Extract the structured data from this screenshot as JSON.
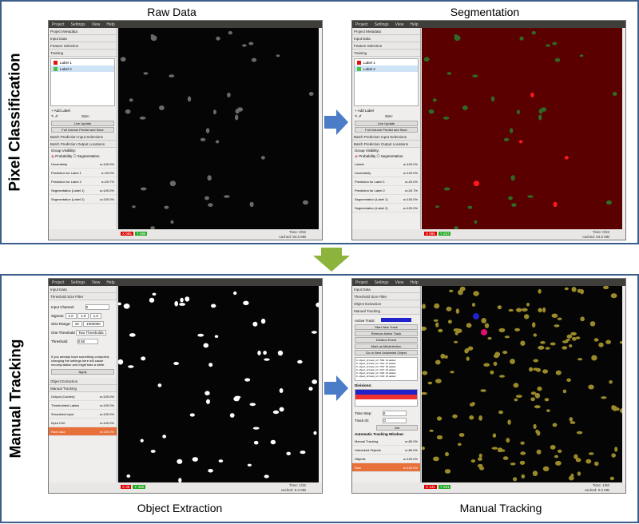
{
  "sections": {
    "pixel": "Pixel Classification",
    "tracking": "Manual Tracking"
  },
  "captions": {
    "raw": "Raw Data",
    "seg": "Segmentation",
    "obj": "Object Extraction",
    "track": "Manual Tracking"
  },
  "menu": [
    "Project",
    "Settings",
    "View",
    "Help"
  ],
  "pc": {
    "applets": [
      "Project Metadata",
      "Input Data",
      "Feature Selection",
      "Training"
    ],
    "labels": [
      {
        "name": "Label 1",
        "color": "#e01010"
      },
      {
        "name": "Label 2",
        "color": "#4fbf3f"
      }
    ],
    "add_label": "Add Label",
    "size_label": "Size:",
    "live_update": "Live Update",
    "full_volume": "Full Volume Predict and Save",
    "batch": [
      "Batch Prediction Input Selections",
      "Batch Prediction Output Locations"
    ],
    "group_vis": "Group Visibility:",
    "probability": "Probability",
    "segmentation": "Segmentation",
    "layers_left": [
      {
        "name": "Uncertainty",
        "val": "α=100.0%"
      },
      {
        "name": "Prediction for Label 1",
        "val": "α=20.0%"
      },
      {
        "name": "Prediction for Label 2",
        "val": "α=20.7%"
      },
      {
        "name": "Segmentation (Label 1)",
        "val": "α=100.0%"
      },
      {
        "name": "Segmentation (Label 2)",
        "val": "α=100.0%"
      }
    ],
    "layers_right": [
      {
        "name": "Labels",
        "val": "α=100.0%"
      },
      {
        "name": "Uncertainty",
        "val": "α=100.0%"
      },
      {
        "name": "Prediction for Label 1",
        "val": "α=20.0%"
      },
      {
        "name": "Prediction for Label 2",
        "val": "α=20.7%"
      },
      {
        "name": "Segmentation (Label 1)",
        "val": "α=100.0%"
      },
      {
        "name": "Segmentation (Label 2)",
        "val": "α=100.0%"
      }
    ],
    "time": "Time:",
    "time_val": "0/32",
    "cached": "cached: 94.5 MB",
    "x_left": "995",
    "y_left": "696",
    "x_right": "995",
    "y_right": "227"
  },
  "oe": {
    "applets": [
      "Input Data",
      "Threshold Size Filter"
    ],
    "input_channel": "Input Channel:",
    "input_channel_val": "0",
    "sigmas": "Sigmas:",
    "sigma_vals": [
      "1.0",
      "1.0",
      "1.0"
    ],
    "size_range": "Size Range:",
    "size_min": "10",
    "size_max": "1000000",
    "tabs": [
      "One Threshold",
      "Two Thresholds"
    ],
    "threshold": "Threshold:",
    "threshold_val": "0.50",
    "note": "If you already have something computed, changing the settings here will cause recomputation and might take a while.",
    "apply": "Apply",
    "after": [
      "Object Extraction",
      "Manual Tracking"
    ],
    "layers": [
      {
        "name": "Output (Cached)",
        "val": "α=100.0%"
      },
      {
        "name": "Thresholded Labels",
        "val": "α=100.0%"
      },
      {
        "name": "Smoothed Input",
        "val": "α=100.0%"
      },
      {
        "name": "Input Ch0",
        "val": "α=100.0%"
      },
      {
        "name": "Raw Data",
        "val": "α=100.0%"
      }
    ],
    "time": "Time:",
    "time_val": "1/32",
    "cached": "cached: 8.0 MB",
    "x": "38",
    "y": "438"
  },
  "mt": {
    "applets": [
      "Input Data",
      "Threshold Size Filter",
      "Object Extraction",
      "Manual Tracking"
    ],
    "active_track": "Active Track:",
    "buttons": [
      "Start New Track",
      "Remove Active Track",
      "Division Event",
      "Mark as Misdetection",
      "Go to Next Unlabeled Object"
    ],
    "log": [
      "0: object_id:track_id = 569: 34 added",
      "0: object_id:track_id = 591: 37 added",
      "0: object_id:track_id = 597: 35 added",
      "0: object_id:track_id = 627: 33 added",
      "0: object_id:track_id = 640: 32 added",
      "0: object_id:track_id = 616: 36 added"
    ],
    "divisions": "Divisions:",
    "time_step": "Time Step:",
    "time_step_val": "0",
    "track_id": "Track ID:",
    "track_id_val": "0",
    "get": "Get",
    "auto": "Automatic Tracking Window:",
    "layers": [
      {
        "name": "Manual Tracking",
        "val": "α=80.0%"
      },
      {
        "name": "Untracked Objects",
        "val": "α=80.0%"
      },
      {
        "name": "Objects",
        "val": "α=100.0%"
      },
      {
        "name": "Raw",
        "val": "α=100.0%"
      }
    ],
    "time": "Time:",
    "time_val": "1/50",
    "cached": "cached: 0.0 MB",
    "x": "141",
    "y": "231"
  },
  "colors": {
    "frame": "#3b5f8a",
    "arrow_blue": "#4a7cc7",
    "arrow_green": "#8cb43c",
    "seg_bg": "#5a0000"
  }
}
